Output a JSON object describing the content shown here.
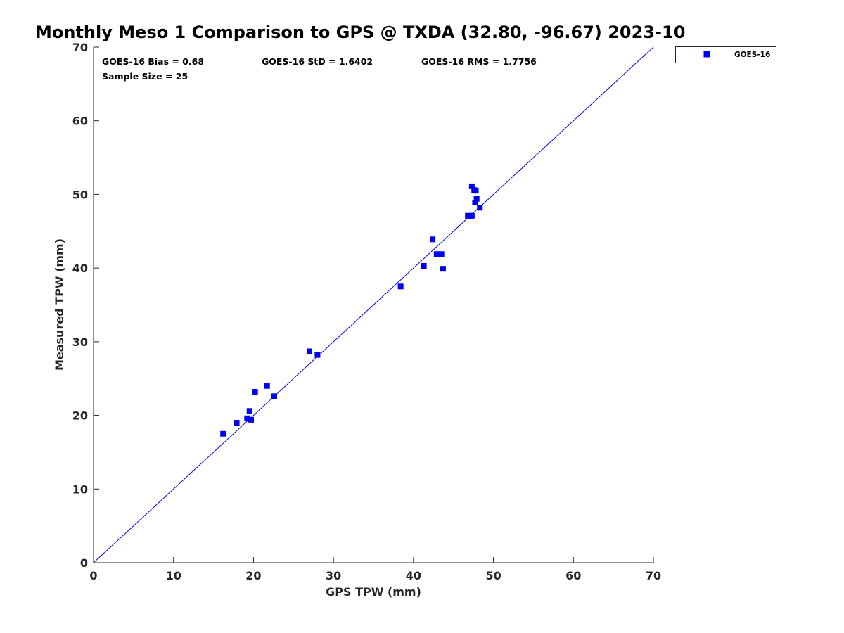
{
  "chart_data": {
    "type": "scatter",
    "title": "Monthly Meso 1 Comparison to GPS @ TXDA (32.80, -96.67) 2023-10",
    "xlabel": "GPS TPW (mm)",
    "ylabel": "Measured TPW (mm)",
    "xlim": [
      0,
      70
    ],
    "ylim": [
      0,
      70
    ],
    "xticks": [
      0,
      10,
      20,
      30,
      40,
      50,
      60,
      70
    ],
    "yticks": [
      0,
      10,
      20,
      30,
      40,
      50,
      60,
      70
    ],
    "xtick_labels": [
      "0",
      "10",
      "20",
      "30",
      "40",
      "50",
      "60",
      "70"
    ],
    "ytick_labels": [
      "0",
      "10",
      "20",
      "30",
      "40",
      "50",
      "60",
      "70"
    ],
    "grid": false,
    "legend_placement": "outside-top-right",
    "reference_line": {
      "x": [
        0,
        70
      ],
      "y": [
        0,
        70
      ],
      "color": "#0000ee"
    },
    "annotations": [
      "GOES-16 Bias = 0.68",
      "GOES-16 StD = 1.6402",
      "GOES-16 RMS = 1.7756",
      "Sample Size = 25"
    ],
    "series": [
      {
        "name": "GOES-16",
        "marker": "square",
        "color": "#0000ee",
        "points": [
          {
            "x": 16.2,
            "y": 17.5
          },
          {
            "x": 17.9,
            "y": 19.0
          },
          {
            "x": 19.2,
            "y": 19.6
          },
          {
            "x": 19.7,
            "y": 19.4
          },
          {
            "x": 19.5,
            "y": 20.6
          },
          {
            "x": 20.2,
            "y": 23.2
          },
          {
            "x": 21.7,
            "y": 24.0
          },
          {
            "x": 22.6,
            "y": 22.6
          },
          {
            "x": 27.0,
            "y": 28.7
          },
          {
            "x": 28.0,
            "y": 28.2
          },
          {
            "x": 38.4,
            "y": 37.5
          },
          {
            "x": 41.3,
            "y": 40.3
          },
          {
            "x": 42.4,
            "y": 43.9
          },
          {
            "x": 42.9,
            "y": 41.9
          },
          {
            "x": 43.5,
            "y": 41.9
          },
          {
            "x": 43.7,
            "y": 39.9
          },
          {
            "x": 46.8,
            "y": 47.1
          },
          {
            "x": 47.3,
            "y": 47.1
          },
          {
            "x": 47.3,
            "y": 51.1
          },
          {
            "x": 47.6,
            "y": 50.6
          },
          {
            "x": 47.8,
            "y": 50.5
          },
          {
            "x": 47.7,
            "y": 48.9
          },
          {
            "x": 47.9,
            "y": 49.4
          },
          {
            "x": 48.3,
            "y": 48.2
          },
          {
            "x": 47.1,
            "y": 47.1
          }
        ]
      }
    ]
  }
}
